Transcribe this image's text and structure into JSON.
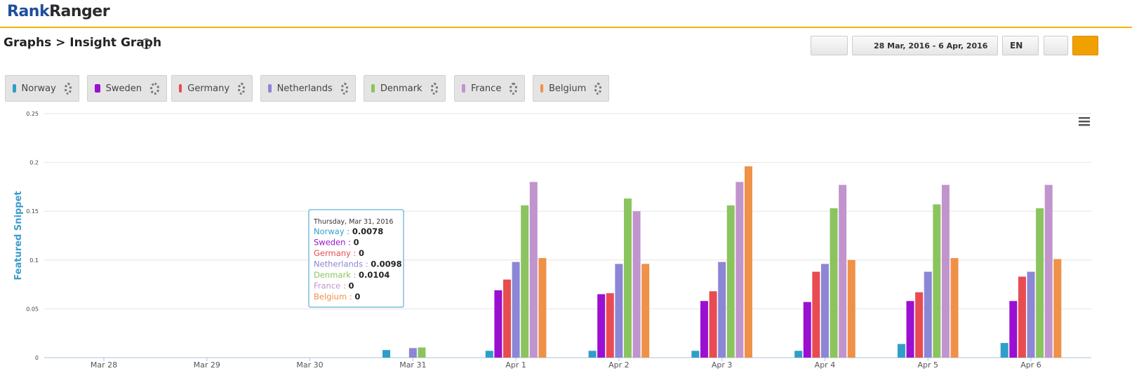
{
  "header": {
    "logo_parts": [
      "Rank",
      "Ranger"
    ]
  },
  "breadcrumb": "Graphs > Insight Graph",
  "toolbar": {
    "date_range": "28 Mar, 2016 - 6 Apr, 2016",
    "language": "EN"
  },
  "chart_data": {
    "type": "bar",
    "y_label": "Featured Snippet",
    "categories": [
      "Mar 28",
      "Mar 29",
      "Mar 30",
      "Mar 31",
      "Apr 1",
      "Apr 2",
      "Apr 3",
      "Apr 4",
      "Apr 5",
      "Apr 6"
    ],
    "series": [
      {
        "name": "Norway",
        "color": "#2f9fc9",
        "values": [
          0,
          0,
          0,
          0.0078,
          0.007,
          0.007,
          0.007,
          0.007,
          0.014,
          0.015
        ]
      },
      {
        "name": "Sweden",
        "color": "#9b0fd1",
        "values": [
          0,
          0,
          0,
          0,
          0.069,
          0.065,
          0.058,
          0.057,
          0.058,
          0.058
        ]
      },
      {
        "name": "Germany",
        "color": "#e84c50",
        "values": [
          0,
          0,
          0,
          0,
          0.08,
          0.066,
          0.068,
          0.088,
          0.067,
          0.083
        ]
      },
      {
        "name": "Netherlands",
        "color": "#8c86d6",
        "values": [
          0,
          0,
          0,
          0.0098,
          0.098,
          0.096,
          0.098,
          0.096,
          0.088,
          0.088
        ]
      },
      {
        "name": "Denmark",
        "color": "#8bc45f",
        "values": [
          0,
          0,
          0,
          0.0104,
          0.156,
          0.163,
          0.156,
          0.153,
          0.157,
          0.153
        ]
      },
      {
        "name": "France",
        "color": "#c194cd",
        "values": [
          0,
          0,
          0,
          0,
          0.18,
          0.15,
          0.18,
          0.177,
          0.177,
          0.177
        ]
      },
      {
        "name": "Belgium",
        "color": "#ef9147",
        "values": [
          0,
          0,
          0,
          0,
          0.102,
          0.096,
          0.196,
          0.1,
          0.102,
          0.101
        ]
      }
    ],
    "ylim": [
      0,
      0.25
    ],
    "yticks": [
      0,
      0.05,
      0.1,
      0.15,
      0.2,
      0.25
    ],
    "grid": true,
    "tooltip": {
      "title": "Thursday, Mar 31, 2016",
      "category_index": 3,
      "separator": " : "
    }
  }
}
